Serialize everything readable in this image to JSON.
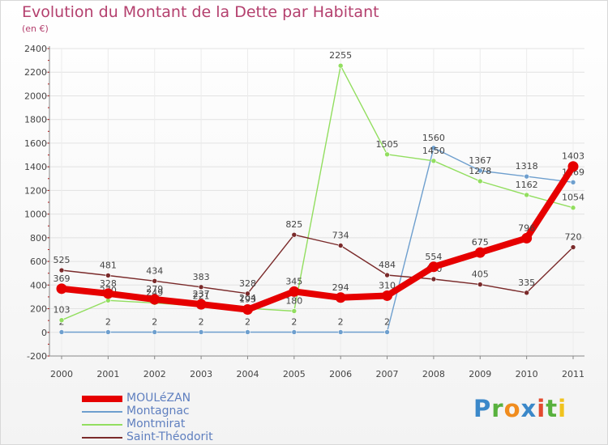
{
  "title": "Evolution du Montant de la Dette par Habitant",
  "unit_label": "(en €)",
  "logo": {
    "text": "Proxiti",
    "letters": [
      "P",
      "r",
      "o",
      "x",
      "i",
      "t",
      "i"
    ]
  },
  "chart_data": {
    "type": "line",
    "x": [
      "2000",
      "2001",
      "2002",
      "2003",
      "2004",
      "2005",
      "2006",
      "2007",
      "2008",
      "2009",
      "2010",
      "2011"
    ],
    "ylim": [
      -200,
      2400
    ],
    "yticks": [
      -200,
      0,
      200,
      400,
      600,
      800,
      1000,
      1200,
      1400,
      1600,
      1800,
      2000,
      2200,
      2400
    ],
    "grid": true,
    "legend_position": "bottom-left",
    "series": [
      {
        "name": "MOULéZAN",
        "color": "#e60000",
        "emphasis": true,
        "values": [
          369,
          328,
          279,
          237,
          193,
          345,
          294,
          310,
          554,
          675,
          796,
          1403
        ],
        "labels": [
          "369",
          "328",
          "279",
          "237",
          "193",
          "345",
          "294",
          "310",
          "554",
          "675",
          "796",
          "1403"
        ]
      },
      {
        "name": "Montagnac",
        "color": "#6e9fce",
        "values": [
          2,
          2,
          2,
          2,
          2,
          2,
          2,
          2,
          1560,
          1367,
          1318,
          1269
        ],
        "labels": [
          "2",
          "2",
          "2",
          "2",
          "2",
          "2",
          "2",
          "2",
          "1560",
          "1367",
          "1318",
          "1269"
        ]
      },
      {
        "name": "Montmirat",
        "color": "#92de5f",
        "values": [
          103,
          270,
          249,
          221,
          204,
          180,
          2255,
          1505,
          1450,
          1278,
          1162,
          1054
        ],
        "labels": [
          "103",
          "270",
          "249",
          "221",
          "204",
          "180",
          "2255",
          "1505",
          "1450",
          "1278",
          "1162",
          "1054"
        ]
      },
      {
        "name": "Saint-Théodorit",
        "color": "#7a2a2a",
        "values": [
          525,
          481,
          434,
          383,
          328,
          825,
          734,
          484,
          450,
          405,
          335,
          720
        ],
        "labels": [
          "525",
          "481",
          "434",
          "383",
          "328",
          "825",
          "734",
          "484",
          "450",
          "405",
          "335",
          "720"
        ]
      }
    ]
  }
}
